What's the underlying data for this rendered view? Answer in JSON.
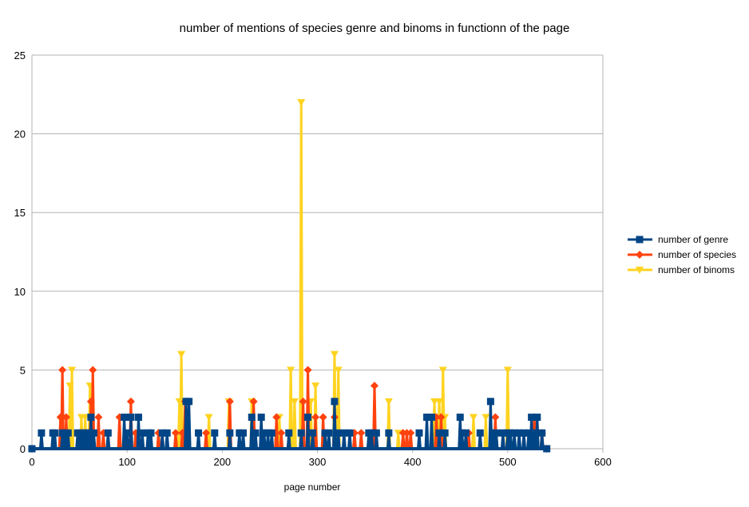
{
  "chart_data": {
    "type": "line",
    "title": "number of mentions of species genre and binoms in functionn of the page",
    "xlabel": "page number",
    "ylabel": "",
    "xlim": [
      0,
      600
    ],
    "ylim": [
      0,
      25
    ],
    "x_ticks": [
      "0",
      "100",
      "200",
      "300",
      "400",
      "500",
      "600"
    ],
    "y_ticks": [
      "0",
      "5",
      "10",
      "15",
      "20",
      "25"
    ],
    "grid": "horizontal",
    "legend_position": "right",
    "series": [
      {
        "name": "number of genre",
        "color": "#004586",
        "marker": "square",
        "points": [
          [
            0,
            0
          ],
          [
            10,
            1
          ],
          [
            22,
            1
          ],
          [
            24,
            1
          ],
          [
            32,
            1
          ],
          [
            35,
            1
          ],
          [
            38,
            1
          ],
          [
            48,
            1
          ],
          [
            51,
            1
          ],
          [
            54,
            1
          ],
          [
            57,
            1
          ],
          [
            59,
            1
          ],
          [
            62,
            2
          ],
          [
            65,
            1
          ],
          [
            80,
            1
          ],
          [
            97,
            2
          ],
          [
            100,
            1
          ],
          [
            104,
            2
          ],
          [
            112,
            2
          ],
          [
            116,
            1
          ],
          [
            122,
            1
          ],
          [
            125,
            1
          ],
          [
            137,
            1
          ],
          [
            142,
            1
          ],
          [
            162,
            3
          ],
          [
            165,
            3
          ],
          [
            175,
            1
          ],
          [
            192,
            1
          ],
          [
            208,
            1
          ],
          [
            218,
            1
          ],
          [
            222,
            1
          ],
          [
            231,
            2
          ],
          [
            235,
            1
          ],
          [
            241,
            2
          ],
          [
            244,
            1
          ],
          [
            248,
            1
          ],
          [
            252,
            1
          ],
          [
            270,
            1
          ],
          [
            283,
            1
          ],
          [
            290,
            2
          ],
          [
            295,
            1
          ],
          [
            308,
            1
          ],
          [
            312,
            1
          ],
          [
            318,
            3
          ],
          [
            322,
            1
          ],
          [
            328,
            1
          ],
          [
            334,
            1
          ],
          [
            354,
            1
          ],
          [
            357,
            1
          ],
          [
            362,
            1
          ],
          [
            375,
            1
          ],
          [
            407,
            1
          ],
          [
            415,
            2
          ],
          [
            420,
            2
          ],
          [
            428,
            1
          ],
          [
            434,
            1
          ],
          [
            450,
            2
          ],
          [
            452,
            1
          ],
          [
            456,
            1
          ],
          [
            471,
            1
          ],
          [
            482,
            3
          ],
          [
            485,
            1
          ],
          [
            488,
            1
          ],
          [
            495,
            1
          ],
          [
            500,
            1
          ],
          [
            503,
            1
          ],
          [
            507,
            1
          ],
          [
            512,
            1
          ],
          [
            517,
            1
          ],
          [
            522,
            1
          ],
          [
            525,
            2
          ],
          [
            528,
            1
          ],
          [
            531,
            2
          ],
          [
            536,
            1
          ],
          [
            541,
            0
          ]
        ]
      },
      {
        "name": "number of species",
        "color": "#ff420e",
        "marker": "diamond",
        "points": [
          [
            0,
            0
          ],
          [
            30,
            2
          ],
          [
            32,
            5
          ],
          [
            36,
            2
          ],
          [
            62,
            3
          ],
          [
            64,
            5
          ],
          [
            70,
            2
          ],
          [
            75,
            1
          ],
          [
            92,
            2
          ],
          [
            104,
            3
          ],
          [
            109,
            1
          ],
          [
            133,
            1
          ],
          [
            151,
            1
          ],
          [
            158,
            1
          ],
          [
            161,
            3
          ],
          [
            183,
            1
          ],
          [
            208,
            3
          ],
          [
            233,
            3
          ],
          [
            257,
            2
          ],
          [
            262,
            1
          ],
          [
            285,
            3
          ],
          [
            290,
            5
          ],
          [
            298,
            2
          ],
          [
            306,
            2
          ],
          [
            318,
            2
          ],
          [
            339,
            1
          ],
          [
            346,
            1
          ],
          [
            360,
            4
          ],
          [
            390,
            1
          ],
          [
            394,
            1
          ],
          [
            398,
            1
          ],
          [
            425,
            2
          ],
          [
            430,
            2
          ],
          [
            459,
            1
          ],
          [
            487,
            2
          ],
          [
            528,
            2
          ],
          [
            536,
            1
          ],
          [
            541,
            0
          ]
        ]
      },
      {
        "name": "number of binoms",
        "color": "#ffd320",
        "marker": "triangle",
        "points": [
          [
            0,
            0
          ],
          [
            40,
            4
          ],
          [
            42,
            5
          ],
          [
            52,
            2
          ],
          [
            56,
            2
          ],
          [
            61,
            4
          ],
          [
            155,
            3
          ],
          [
            157,
            6
          ],
          [
            186,
            2
          ],
          [
            207,
            3
          ],
          [
            231,
            3
          ],
          [
            260,
            2
          ],
          [
            272,
            5
          ],
          [
            276,
            3
          ],
          [
            283,
            22
          ],
          [
            293,
            3
          ],
          [
            298,
            4
          ],
          [
            318,
            6
          ],
          [
            322,
            5
          ],
          [
            375,
            3
          ],
          [
            385,
            1
          ],
          [
            423,
            3
          ],
          [
            428,
            3
          ],
          [
            432,
            5
          ],
          [
            434,
            2
          ],
          [
            464,
            2
          ],
          [
            477,
            2
          ],
          [
            500,
            5
          ],
          [
            541,
            0
          ]
        ]
      }
    ]
  }
}
